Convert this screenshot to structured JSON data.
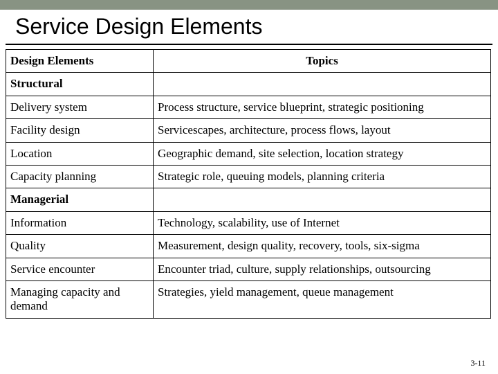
{
  "title": "Service Design Elements",
  "table": {
    "header": {
      "left": "Design Elements",
      "right": "Topics"
    },
    "section1": "Structural",
    "rows1": [
      {
        "l": "Delivery system",
        "r": "Process structure, service blueprint, strategic positioning"
      },
      {
        "l": "Facility design",
        "r": "Servicescapes, architecture, process flows, layout"
      },
      {
        "l": "Location",
        "r": "Geographic demand, site selection, location strategy"
      },
      {
        "l": "Capacity planning",
        "r": "Strategic role, queuing models, planning criteria"
      }
    ],
    "section2": "Managerial",
    "rows2": [
      {
        "l": "Information",
        "r": "Technology, scalability, use of Internet"
      },
      {
        "l": "Quality",
        "r": "Measurement, design quality, recovery, tools, six-sigma"
      },
      {
        "l": "Service encounter",
        "r": "Encounter triad, culture, supply relationships, outsourcing"
      },
      {
        "l": "Managing capacity and demand",
        "r": "Strategies, yield management, queue management"
      }
    ]
  },
  "page_number": "3-11"
}
